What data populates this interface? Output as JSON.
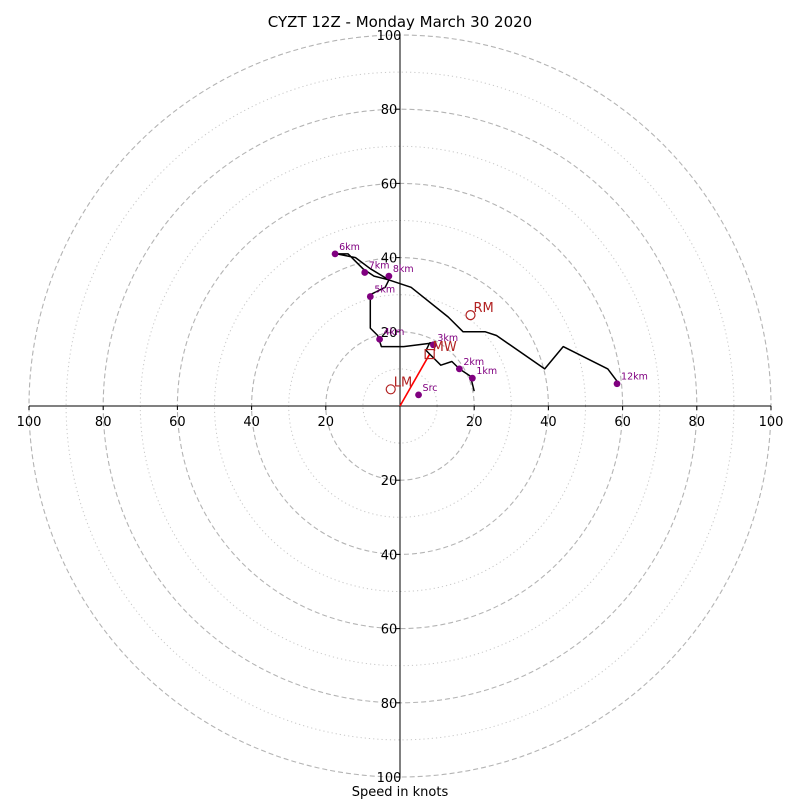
{
  "chart_data": {
    "type": "hodograph",
    "title": "CYZT 12Z - Monday March 30 2020",
    "xlabel": "Speed in knots",
    "xlim": [
      -100,
      100
    ],
    "ylim": [
      -100,
      100
    ],
    "grid": true,
    "rings_major": [
      20,
      40,
      60,
      80,
      100
    ],
    "rings_minor": [
      10,
      30,
      50,
      70,
      90
    ],
    "x_ticks": [
      "100",
      "80",
      "60",
      "40",
      "20",
      "20",
      "40",
      "60",
      "80",
      "100"
    ],
    "y_ticks": [
      "100",
      "80",
      "60",
      "40",
      "20",
      "20",
      "40",
      "60",
      "80",
      "100"
    ],
    "wind_profile": {
      "color": "#000000",
      "points": [
        [
          20,
          4
        ],
        [
          19,
          8
        ],
        [
          16,
          10
        ],
        [
          14,
          12
        ],
        [
          11,
          11
        ],
        [
          8,
          14
        ],
        [
          7,
          15
        ],
        [
          8,
          17
        ],
        [
          9,
          17
        ],
        [
          1,
          16
        ],
        [
          -5,
          16
        ],
        [
          -6,
          19
        ],
        [
          -8,
          21
        ],
        [
          -8,
          30
        ],
        [
          -6,
          31
        ],
        [
          -4,
          32
        ],
        [
          -3,
          34
        ],
        [
          -8,
          37
        ],
        [
          -12,
          40
        ],
        [
          -17,
          41
        ],
        [
          -14,
          41
        ],
        [
          -12,
          39
        ],
        [
          -10,
          37
        ],
        [
          -7,
          35
        ],
        [
          -3,
          34
        ],
        [
          3,
          32
        ],
        [
          13,
          24
        ],
        [
          17,
          20
        ],
        [
          23,
          20
        ],
        [
          26,
          19
        ],
        [
          39,
          10
        ],
        [
          44,
          16
        ],
        [
          56,
          10
        ],
        [
          59,
          6
        ]
      ]
    },
    "height_markers": {
      "color": "#800080",
      "points": [
        {
          "label": "Src",
          "u": 5,
          "v": 3
        },
        {
          "label": "1km",
          "u": 19.5,
          "v": 7.5
        },
        {
          "label": "2km",
          "u": 16,
          "v": 10
        },
        {
          "label": "3km",
          "u": 9,
          "v": 16.5
        },
        {
          "label": "4km",
          "u": -5.5,
          "v": 18
        },
        {
          "label": "5km",
          "u": -8,
          "v": 29.5
        },
        {
          "label": "6km",
          "u": -17.5,
          "v": 41
        },
        {
          "label": "7km",
          "u": -9.5,
          "v": 36
        },
        {
          "label": "8km",
          "u": -3,
          "v": 35
        },
        {
          "label": "12km",
          "u": 58.5,
          "v": 6
        }
      ]
    },
    "storm_motions": {
      "color": "#b22222",
      "points": [
        {
          "label": "RM",
          "u": 19,
          "v": 24.5
        },
        {
          "label": "LM",
          "u": -2.5,
          "v": 4.5
        },
        {
          "label": "MW",
          "u": 8,
          "v": 14
        }
      ]
    },
    "mean_wind_vector": {
      "color": "#ff0000",
      "from": [
        0,
        0
      ],
      "to": [
        8,
        14
      ]
    }
  }
}
